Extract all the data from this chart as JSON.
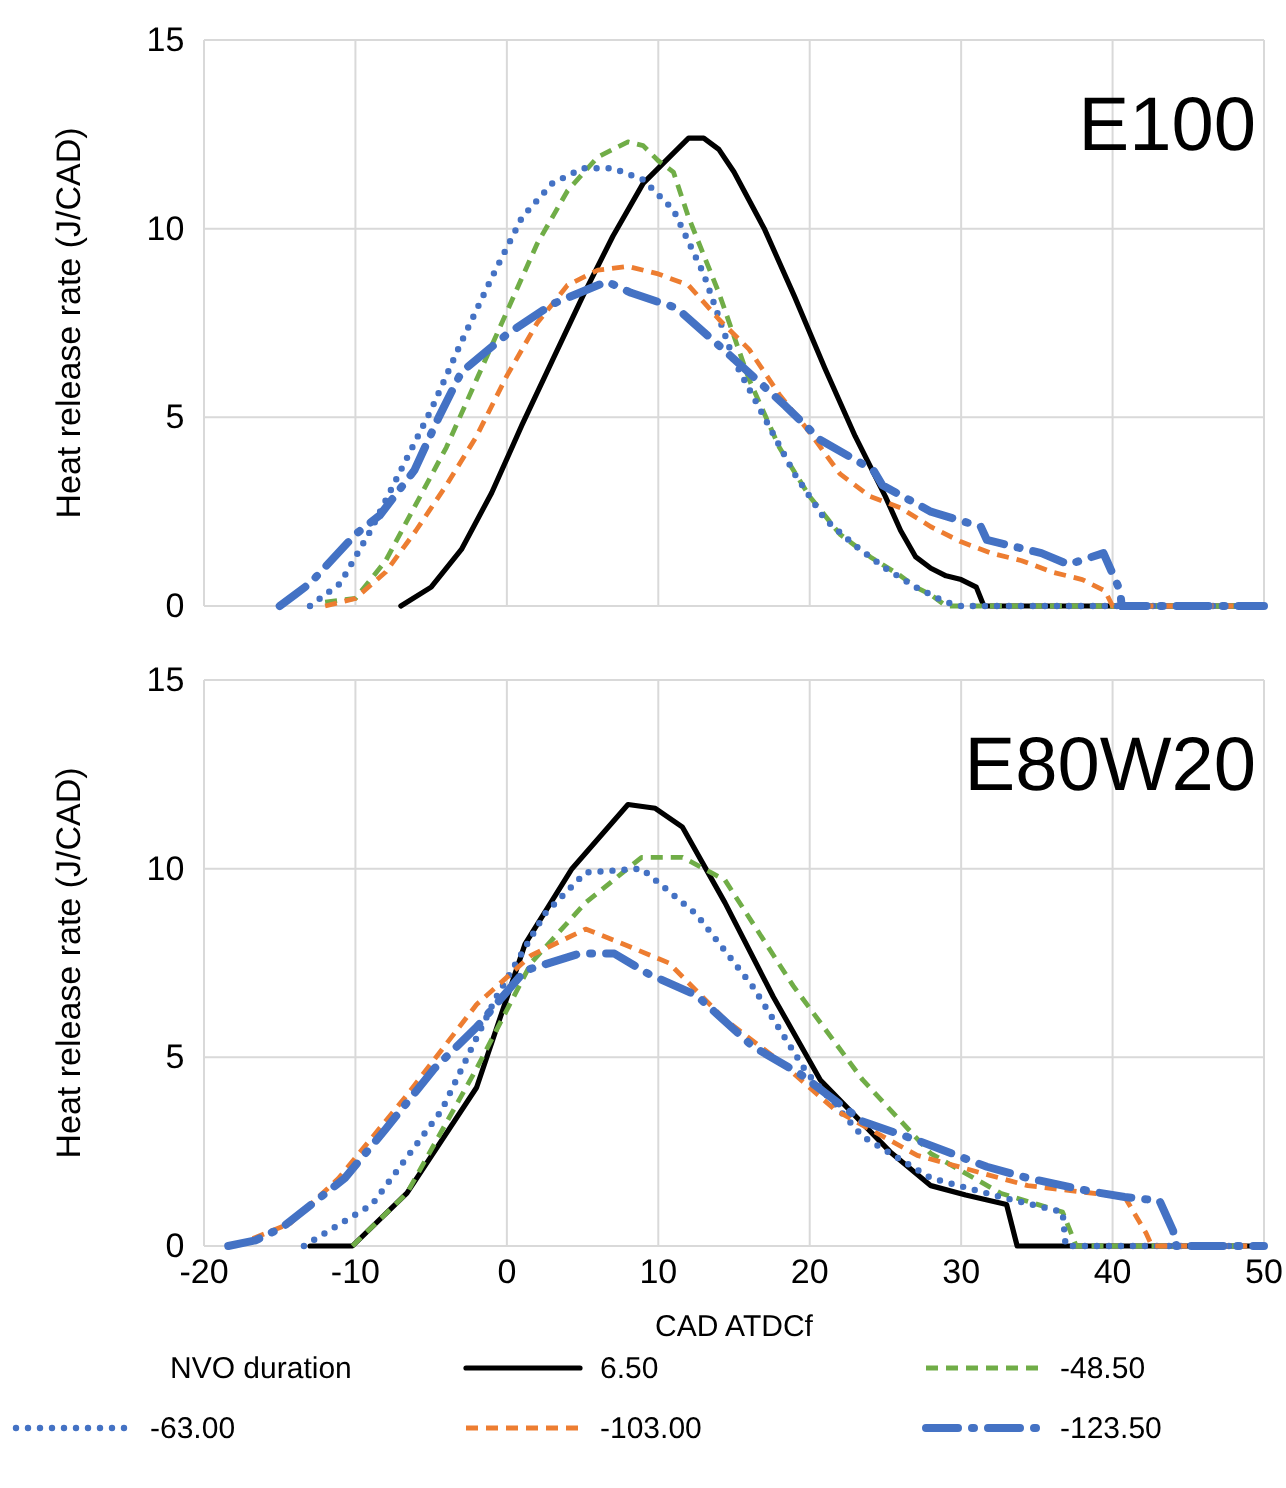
{
  "chart_data": [
    {
      "type": "line",
      "title": "E100",
      "ylabel": "Heat release rate (J/CAD)",
      "xlim": [
        -20,
        50
      ],
      "xticks": [
        -20,
        -10,
        0,
        10,
        20,
        30,
        40,
        50
      ],
      "ylim": [
        0,
        15
      ],
      "yticks": [
        0,
        5,
        10,
        15
      ],
      "grid": true,
      "legend": false,
      "tick_labels": "y",
      "marker": "none",
      "series": [
        {
          "color": "#000000",
          "line_style": "solid",
          "x": [
            -7,
            -5,
            -3,
            -1,
            1,
            3,
            5,
            7,
            9,
            11,
            12,
            13,
            14,
            15,
            17,
            19,
            21,
            23,
            25,
            26,
            27,
            28,
            29,
            30,
            31,
            31.5,
            50
          ],
          "values": [
            0,
            0.5,
            1.5,
            3,
            4.8,
            6.5,
            8.2,
            9.8,
            11.2,
            12,
            12.4,
            12.4,
            12.1,
            11.5,
            10,
            8.2,
            6.3,
            4.5,
            2.9,
            2,
            1.3,
            1,
            0.8,
            0.7,
            0.5,
            0,
            0
          ]
        },
        {
          "color": "#70ad47",
          "line_style": "dashed",
          "x": [
            -12,
            -10,
            -8,
            -6,
            -4,
            -2,
            0,
            2,
            4,
            6,
            8,
            9,
            10,
            11,
            12,
            14,
            16,
            18,
            20,
            22,
            24,
            26,
            27,
            28,
            29,
            50
          ],
          "values": [
            0.1,
            0.2,
            1.2,
            2.7,
            4.2,
            6,
            7.8,
            9.6,
            11,
            11.9,
            12.3,
            12.2,
            11.8,
            11.5,
            10.3,
            8.3,
            6,
            4.2,
            2.9,
            1.9,
            1.3,
            0.8,
            0.5,
            0.3,
            0,
            0
          ]
        },
        {
          "color": "#4472c4",
          "line_style": "dotted",
          "x": [
            -13,
            -11,
            -9,
            -7,
            -5,
            -3,
            -1,
            1,
            3,
            5,
            7,
            9,
            11,
            13,
            15,
            17,
            19,
            21,
            23,
            25,
            27,
            28,
            29,
            30,
            50
          ],
          "values": [
            0,
            0.6,
            2,
            3.6,
            5.2,
            7,
            8.7,
            10.3,
            11.2,
            11.6,
            11.6,
            11.3,
            10.5,
            8.8,
            6.5,
            5,
            3.5,
            2.3,
            1.6,
            1,
            0.5,
            0.3,
            0.1,
            0,
            0
          ]
        },
        {
          "color": "#ed7d31",
          "line_style": "dashed",
          "x": [
            -12,
            -10,
            -8,
            -6,
            -4,
            -2,
            0,
            2,
            4,
            6,
            8,
            10,
            12,
            14,
            16,
            18,
            20,
            22,
            24,
            26,
            28,
            30,
            32,
            34,
            36,
            38,
            39.5,
            40,
            50
          ],
          "values": [
            0,
            0.2,
            0.9,
            2,
            3.2,
            4.5,
            6.1,
            7.5,
            8.5,
            8.9,
            9,
            8.8,
            8.5,
            7.6,
            6.8,
            5.6,
            4.6,
            3.5,
            2.9,
            2.6,
            2.1,
            1.7,
            1.4,
            1.2,
            0.9,
            0.7,
            0.4,
            0,
            0
          ]
        },
        {
          "color": "#4472c4",
          "line_style": "dashdot",
          "x": [
            -15,
            -14,
            -13,
            -10,
            -8.4,
            -6.1,
            -4.5,
            -3,
            0,
            3,
            6.6,
            8.2,
            11.2,
            14.3,
            18.4,
            20.7,
            24.2,
            24.8,
            28,
            31.3,
            31.7,
            35.3,
            37.1,
            39.4,
            40.5,
            40.6,
            50
          ],
          "values": [
            0,
            0.3,
            0.6,
            1.9,
            2.4,
            3.6,
            5,
            6.2,
            7.2,
            8,
            8.6,
            8.3,
            7.9,
            6.8,
            5.3,
            4.4,
            3.6,
            3.2,
            2.5,
            2.1,
            1.75,
            1.4,
            1.1,
            1.4,
            0.4,
            0,
            0
          ]
        }
      ]
    },
    {
      "type": "line",
      "title": "E80W20",
      "xlabel": "CAD ATDCf",
      "ylabel": "Heat release rate (J/CAD)",
      "xlim": [
        -20,
        50
      ],
      "xticks": [
        -20,
        -10,
        0,
        10,
        20,
        30,
        40,
        50
      ],
      "ylim": [
        0,
        15
      ],
      "yticks": [
        0,
        5,
        10,
        15
      ],
      "grid": true,
      "legend": "bottom",
      "legend_title": "NVO duration",
      "marker": "none",
      "series": [
        {
          "name": "6.50",
          "color": "#000000",
          "line_style": "solid",
          "x": [
            -13,
            -10.2,
            -6.6,
            -2,
            1.2,
            4.3,
            8,
            9.8,
            11.6,
            14.4,
            17.6,
            20.7,
            25.3,
            28,
            30.3,
            33,
            33.7,
            50
          ],
          "values": [
            0,
            0,
            1.4,
            4.2,
            8,
            10,
            11.7,
            11.6,
            11.1,
            9.1,
            6.6,
            4.4,
            2.5,
            1.6,
            1.35,
            1.1,
            0,
            0
          ]
        },
        {
          "name": "-48.50",
          "color": "#70ad47",
          "line_style": "dashed",
          "x": [
            -10.2,
            -6.6,
            -2,
            1.6,
            5.2,
            8.9,
            11.6,
            14.4,
            18.9,
            23.5,
            28,
            32.6,
            36.7,
            37.6,
            50
          ],
          "values": [
            0,
            1.4,
            4.7,
            7.5,
            9.1,
            10.3,
            10.3,
            9.7,
            6.9,
            4.4,
            2.45,
            1.4,
            0.9,
            0,
            0
          ]
        },
        {
          "name": "-63.00",
          "color": "#4472c4",
          "line_style": "dotted",
          "x": [
            -13.4,
            -8.9,
            -4.3,
            -0.7,
            2.5,
            5.2,
            8.9,
            12.5,
            16.2,
            19.8,
            23.5,
            28,
            32.6,
            36.7,
            36.9,
            50
          ],
          "values": [
            0,
            1.1,
            3.6,
            6.6,
            8.8,
            9.9,
            10,
            8.8,
            6.9,
            4.6,
            2.9,
            1.8,
            1.3,
            0.9,
            0,
            0
          ]
        },
        {
          "name": "-103.00",
          "color": "#ed7d31",
          "line_style": "dashed",
          "x": [
            -18,
            -14.3,
            -11.1,
            -6.6,
            -2,
            1.6,
            5.2,
            7.1,
            10.7,
            14.4,
            18,
            21.7,
            27.1,
            34.4,
            40.8,
            42.2,
            42.6,
            50
          ],
          "values": [
            0,
            0.6,
            1.8,
            4,
            6.4,
            7.7,
            8.4,
            8.1,
            7.5,
            6,
            4.9,
            3.6,
            2.4,
            1.6,
            1.3,
            0.35,
            0,
            0
          ]
        },
        {
          "name": "-123.50",
          "color": "#4472c4",
          "line_style": "dashdot",
          "x": [
            -18.4,
            -16.6,
            -14.8,
            -10.7,
            -8,
            -4.8,
            -2,
            1.2,
            4.8,
            7.1,
            9.4,
            12.5,
            16.2,
            19.4,
            23.5,
            27.1,
            31.7,
            34.4,
            38.5,
            40.8,
            43.1,
            44,
            44.2,
            50
          ],
          "values": [
            0,
            0.15,
            0.5,
            1.8,
            3.1,
            4.7,
            5.8,
            7.3,
            7.75,
            7.75,
            7.2,
            6.65,
            5.3,
            4.55,
            3.3,
            2.8,
            2.1,
            1.8,
            1.45,
            1.3,
            1.2,
            0.4,
            0,
            0
          ]
        }
      ]
    }
  ]
}
